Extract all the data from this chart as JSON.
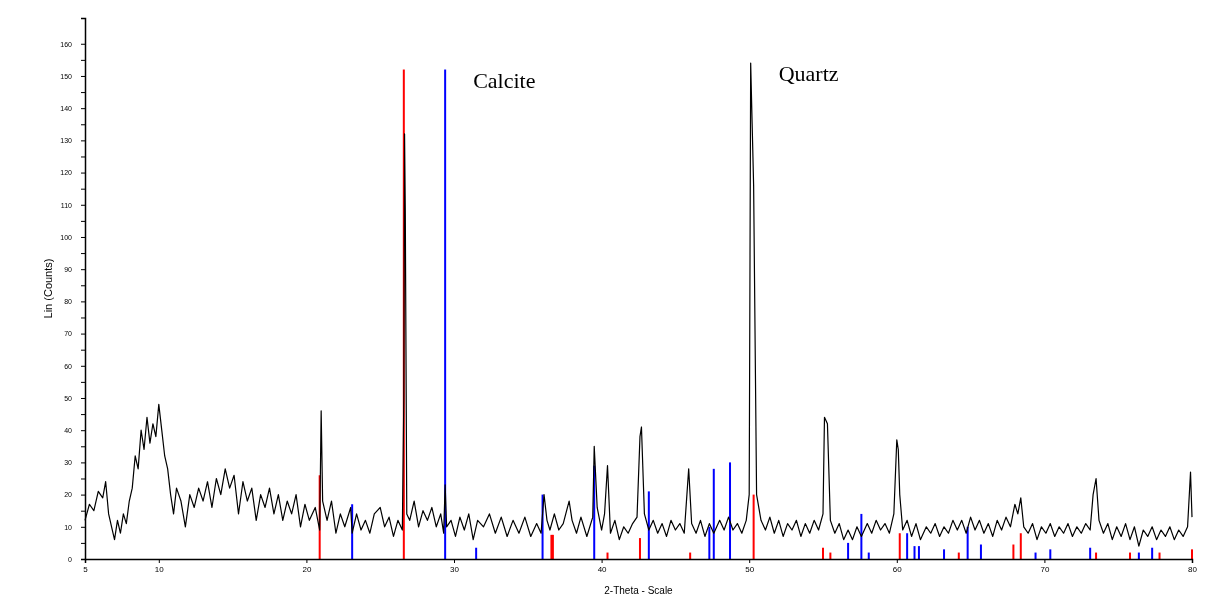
{
  "chart_data": {
    "type": "line",
    "xlabel": "2-Theta - Scale",
    "ylabel": "Lin (Counts)",
    "xlim": [
      5,
      80
    ],
    "ylim": [
      0,
      168
    ],
    "xticks": [
      5,
      10,
      20,
      30,
      40,
      50,
      60,
      70,
      80
    ],
    "yticks": [
      0,
      {
        "value": 5,
        "label": null
      },
      10,
      {
        "value": 15,
        "label": null
      },
      20,
      {
        "value": 25,
        "label": null
      },
      30,
      {
        "value": 35,
        "label": null
      },
      40,
      {
        "value": 45,
        "label": null
      },
      50,
      {
        "value": 55,
        "label": null
      },
      60,
      {
        "value": 65,
        "label": null
      },
      70,
      {
        "value": 75,
        "label": null
      },
      80,
      {
        "value": 85,
        "label": null
      },
      90,
      {
        "value": 95,
        "label": null
      },
      100,
      {
        "value": 105,
        "label": null
      },
      110,
      {
        "value": 115,
        "label": null
      },
      120,
      {
        "value": 125,
        "label": null
      },
      130,
      {
        "value": 135,
        "label": null
      },
      140,
      {
        "value": 145,
        "label": null
      },
      150,
      {
        "value": 155,
        "label": null
      },
      160
    ],
    "grid": false,
    "annotations": [
      {
        "text": "Calcite",
        "x": 29.4,
        "y": 152
      },
      {
        "text": "Quartz",
        "x": 50.1,
        "y": 154
      }
    ],
    "series": [
      {
        "type": "bar",
        "color": "#ff0000",
        "x": [
          20.9,
          26.6,
          36.6,
          36.7,
          40.4,
          42.6,
          46.0,
          50.3,
          55.0,
          55.5,
          60.2,
          64.2,
          67.9,
          68.4,
          73.5,
          75.8,
          77.8,
          80.0
        ],
        "values": [
          26,
          152,
          7.5,
          7.5,
          2,
          6.5,
          2,
          20,
          3.5,
          2,
          8,
          2,
          4.5,
          8,
          2,
          2,
          2,
          3
        ]
      },
      {
        "type": "bar",
        "color": "#0000ff",
        "x": [
          23.1,
          29.4,
          31.5,
          36.0,
          39.5,
          43.2,
          47.3,
          47.6,
          48.7,
          56.7,
          57.6,
          58.1,
          60.7,
          61.2,
          61.5,
          63.2,
          64.8,
          65.7,
          69.4,
          70.4,
          73.1,
          76.4,
          77.3
        ],
        "values": [
          17,
          152,
          3.5,
          20,
          29,
          21,
          10,
          28,
          30,
          5,
          14,
          2,
          8,
          4,
          4,
          3,
          10,
          4.5,
          2,
          3,
          3.5,
          2,
          3.5
        ]
      },
      {
        "color": "#000000",
        "x": [
          5.0,
          5.3,
          5.6,
          5.9,
          6.2,
          6.4,
          6.6,
          6.8,
          7.0,
          7.2,
          7.4,
          7.6,
          7.8,
          8.0,
          8.2,
          8.4,
          8.6,
          8.8,
          9.0,
          9.2,
          9.4,
          9.6,
          9.8,
          10.0,
          10.2,
          10.4,
          10.6,
          10.8,
          11.0,
          11.2,
          11.5,
          11.8,
          12.1,
          12.4,
          12.7,
          13.0,
          13.3,
          13.6,
          13.9,
          14.2,
          14.5,
          14.8,
          15.1,
          15.4,
          15.7,
          16.0,
          16.3,
          16.6,
          16.9,
          17.2,
          17.5,
          17.8,
          18.1,
          18.4,
          18.7,
          19.0,
          19.3,
          19.6,
          19.9,
          20.2,
          20.6,
          20.9,
          21.0,
          21.1,
          21.4,
          21.7,
          22.0,
          22.3,
          22.6,
          23.0,
          23.1,
          23.4,
          23.7,
          24.0,
          24.3,
          24.6,
          25.0,
          25.3,
          25.6,
          25.9,
          26.2,
          26.5,
          26.6,
          26.65,
          26.7,
          26.8,
          27.0,
          27.3,
          27.6,
          27.9,
          28.2,
          28.5,
          28.8,
          29.1,
          29.3,
          29.4,
          29.5,
          29.8,
          30.1,
          30.4,
          30.7,
          31.0,
          31.3,
          31.6,
          32.0,
          32.4,
          32.8,
          33.2,
          33.6,
          34.0,
          34.4,
          34.8,
          35.2,
          35.6,
          35.9,
          36.1,
          36.3,
          36.5,
          36.8,
          37.1,
          37.4,
          37.8,
          38.0,
          38.3,
          38.6,
          39.0,
          39.4,
          39.5,
          39.7,
          40.0,
          40.2,
          40.4,
          40.6,
          40.9,
          41.2,
          41.5,
          41.8,
          42.1,
          42.4,
          42.6,
          42.7,
          42.9,
          43.2,
          43.5,
          43.8,
          44.1,
          44.4,
          44.7,
          45.0,
          45.3,
          45.6,
          45.9,
          46.1,
          46.4,
          46.7,
          47.0,
          47.3,
          47.6,
          48.0,
          48.3,
          48.6,
          48.9,
          49.2,
          49.5,
          49.8,
          50.0,
          50.1,
          50.2,
          50.3,
          50.5,
          50.8,
          51.1,
          51.4,
          51.7,
          52.0,
          52.3,
          52.6,
          52.9,
          53.2,
          53.5,
          53.8,
          54.1,
          54.4,
          54.7,
          55.0,
          55.1,
          55.3,
          55.5,
          55.8,
          56.1,
          56.4,
          56.7,
          57.0,
          57.3,
          57.6,
          58.0,
          58.3,
          58.6,
          58.9,
          59.2,
          59.5,
          59.8,
          60.0,
          60.1,
          60.2,
          60.4,
          60.7,
          61.0,
          61.3,
          61.6,
          62.0,
          62.3,
          62.6,
          62.9,
          63.2,
          63.5,
          63.8,
          64.1,
          64.4,
          64.7,
          65.0,
          65.3,
          65.6,
          65.9,
          66.2,
          66.5,
          66.8,
          67.1,
          67.4,
          67.7,
          68.0,
          68.2,
          68.4,
          68.6,
          68.9,
          69.2,
          69.5,
          69.8,
          70.1,
          70.4,
          70.7,
          71.0,
          71.3,
          71.6,
          71.9,
          72.2,
          72.5,
          72.8,
          73.1,
          73.3,
          73.5,
          73.7,
          74.0,
          74.3,
          74.6,
          74.9,
          75.2,
          75.5,
          75.8,
          76.1,
          76.4,
          76.7,
          77.0,
          77.3,
          77.6,
          77.9,
          78.2,
          78.5,
          78.8,
          79.1,
          79.4,
          79.7,
          79.9,
          80.0
        ],
        "values": [
          12,
          17,
          15,
          21,
          19,
          24,
          14,
          10,
          6,
          12,
          8,
          14,
          11,
          18,
          22,
          32,
          28,
          40,
          34,
          44,
          36,
          42,
          38,
          48,
          40,
          32,
          28,
          20,
          14,
          22,
          18,
          10,
          20,
          16,
          22,
          18,
          24,
          16,
          25,
          20,
          28,
          22,
          26,
          14,
          24,
          18,
          22,
          12,
          20,
          16,
          22,
          14,
          20,
          12,
          18,
          14,
          20,
          10,
          17,
          12,
          16,
          9,
          46,
          18,
          12,
          18,
          8,
          14,
          10,
          16,
          8,
          14,
          9,
          12,
          8,
          14,
          16,
          10,
          13,
          7,
          12,
          9,
          50,
          132,
          108,
          14,
          12,
          18,
          10,
          15,
          12,
          16,
          10,
          14,
          8,
          23,
          10,
          12,
          7,
          13,
          9,
          14,
          6,
          12,
          10,
          14,
          8,
          13,
          7,
          12,
          8,
          13,
          7,
          11,
          8,
          20,
          12,
          9,
          14,
          9,
          11,
          18,
          12,
          8,
          13,
          7,
          13,
          35,
          16,
          9,
          14,
          29,
          8,
          12,
          6,
          10,
          8,
          11,
          13,
          38,
          41,
          14,
          9,
          12,
          8,
          11,
          7,
          12,
          9,
          11,
          8,
          28,
          11,
          8,
          12,
          7,
          11,
          8,
          12,
          9,
          13,
          9,
          11,
          8,
          12,
          20,
          154,
          135,
          116,
          20,
          12,
          9,
          13,
          8,
          12,
          7,
          11,
          9,
          12,
          7,
          11,
          8,
          12,
          9,
          14,
          44,
          42,
          12,
          8,
          11,
          6,
          9,
          6,
          10,
          7,
          11,
          8,
          12,
          9,
          11,
          8,
          14,
          37,
          34,
          20,
          9,
          12,
          7,
          11,
          6,
          10,
          8,
          11,
          7,
          10,
          8,
          12,
          9,
          12,
          8,
          13,
          9,
          12,
          8,
          11,
          7,
          12,
          9,
          13,
          10,
          17,
          14,
          19,
          10,
          8,
          11,
          6,
          10,
          8,
          11,
          7,
          10,
          8,
          11,
          7,
          10,
          8,
          11,
          9,
          20,
          25,
          12,
          8,
          11,
          6,
          10,
          7,
          11,
          6,
          10,
          4,
          9,
          7,
          10,
          6,
          9,
          7,
          10,
          6,
          9,
          7,
          10,
          27,
          13
        ]
      }
    ]
  }
}
